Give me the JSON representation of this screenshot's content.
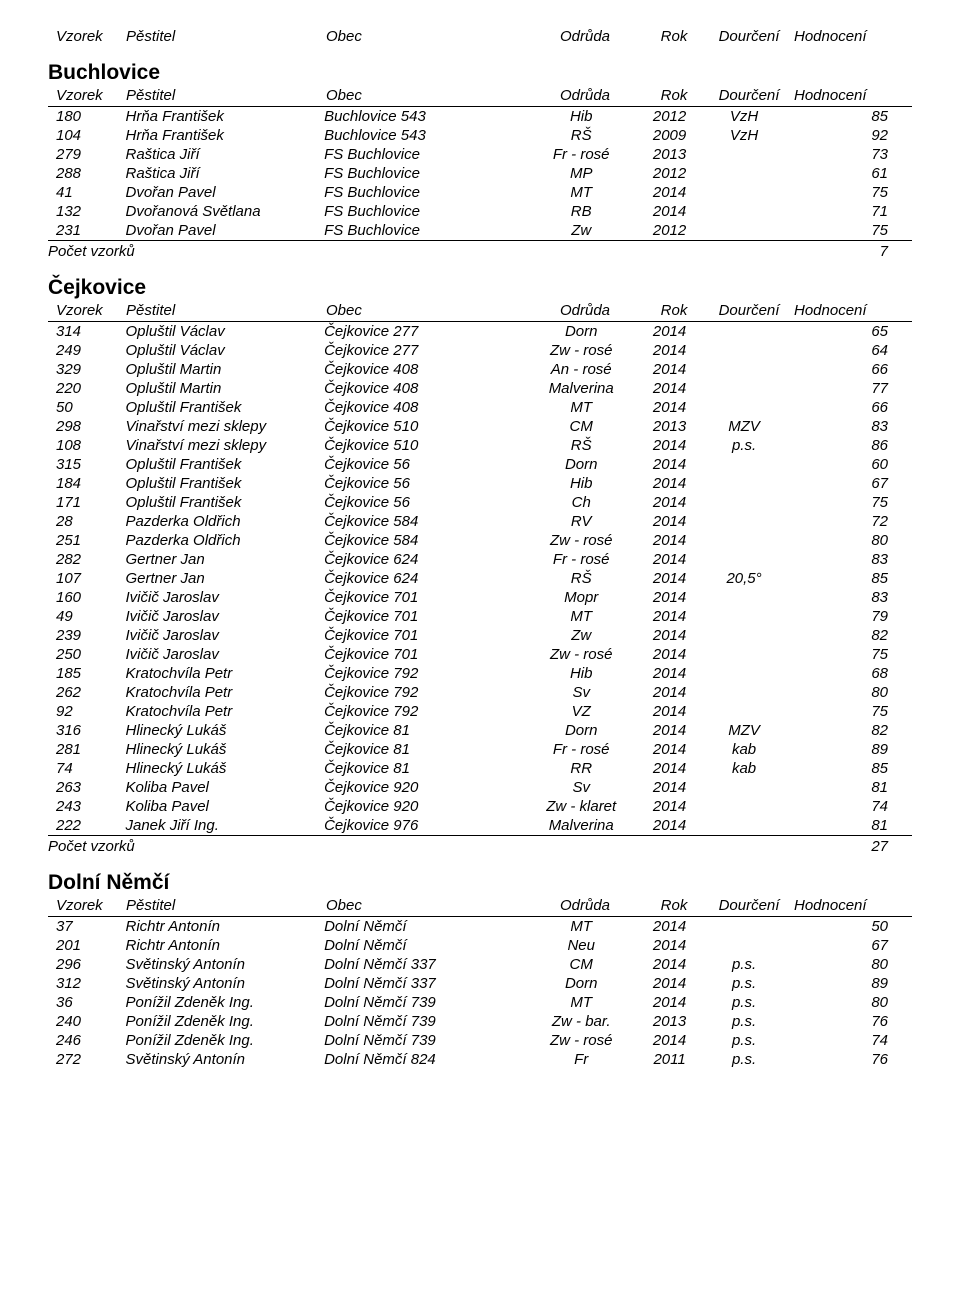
{
  "columns": {
    "vzorek": "Vzorek",
    "pestitel": "Pěstitel",
    "obec": "Obec",
    "odruda": "Odrůda",
    "rok": "Rok",
    "dour": "Dourčení",
    "hodn": "Hodnocení"
  },
  "pocet_label": "Počet vzorků",
  "sections": [
    {
      "title": "Buchlovice",
      "rows": [
        {
          "v": "180",
          "p": "Hrňa František",
          "o": "Buchlovice 543",
          "od": "Hib",
          "r": "2012",
          "d": "VzH",
          "h": "85"
        },
        {
          "v": "104",
          "p": "Hrňa František",
          "o": "Buchlovice 543",
          "od": "RŠ",
          "r": "2009",
          "d": "VzH",
          "h": "92"
        },
        {
          "v": "279",
          "p": "Raštica Jiří",
          "o": "FS Buchlovice",
          "od": "Fr - rosé",
          "r": "2013",
          "d": "",
          "h": "73"
        },
        {
          "v": "288",
          "p": "Raštica Jiří",
          "o": "FS Buchlovice",
          "od": "MP",
          "r": "2012",
          "d": "",
          "h": "61"
        },
        {
          "v": "41",
          "p": "Dvořan Pavel",
          "o": "FS Buchlovice",
          "od": "MT",
          "r": "2014",
          "d": "",
          "h": "75"
        },
        {
          "v": "132",
          "p": "Dvořanová Světlana",
          "o": "FS Buchlovice",
          "od": "RB",
          "r": "2014",
          "d": "",
          "h": "71"
        },
        {
          "v": "231",
          "p": "Dvořan Pavel",
          "o": "FS Buchlovice",
          "od": "Zw",
          "r": "2012",
          "d": "",
          "h": "75"
        }
      ],
      "count": "7"
    },
    {
      "title": "Čejkovice",
      "rows": [
        {
          "v": "314",
          "p": "Opluštil Václav",
          "o": "Čejkovice 277",
          "od": "Dorn",
          "r": "2014",
          "d": "",
          "h": "65"
        },
        {
          "v": "249",
          "p": "Opluštil Václav",
          "o": "Čejkovice 277",
          "od": "Zw - rosé",
          "r": "2014",
          "d": "",
          "h": "64"
        },
        {
          "v": "329",
          "p": "Opluštil Martin",
          "o": "Čejkovice 408",
          "od": "An - rosé",
          "r": "2014",
          "d": "",
          "h": "66"
        },
        {
          "v": "220",
          "p": "Opluštil Martin",
          "o": "Čejkovice 408",
          "od": "Malverina",
          "r": "2014",
          "d": "",
          "h": "77"
        },
        {
          "v": "50",
          "p": "Opluštil František",
          "o": "Čejkovice 408",
          "od": "MT",
          "r": "2014",
          "d": "",
          "h": "66"
        },
        {
          "v": "298",
          "p": "Vinařství mezi sklepy",
          "o": "Čejkovice 510",
          "od": "CM",
          "r": "2013",
          "d": "MZV",
          "h": "83"
        },
        {
          "v": "108",
          "p": "Vinařství mezi sklepy",
          "o": "Čejkovice 510",
          "od": "RŠ",
          "r": "2014",
          "d": "p.s.",
          "h": "86"
        },
        {
          "v": "315",
          "p": "Opluštil František",
          "o": "Čejkovice 56",
          "od": "Dorn",
          "r": "2014",
          "d": "",
          "h": "60"
        },
        {
          "v": "184",
          "p": "Opluštil František",
          "o": "Čejkovice 56",
          "od": "Hib",
          "r": "2014",
          "d": "",
          "h": "67"
        },
        {
          "v": "171",
          "p": "Opluštil František",
          "o": "Čejkovice 56",
          "od": "Ch",
          "r": "2014",
          "d": "",
          "h": "75"
        },
        {
          "v": "28",
          "p": "Pazderka Oldřich",
          "o": "Čejkovice 584",
          "od": "RV",
          "r": "2014",
          "d": "",
          "h": "72"
        },
        {
          "v": "251",
          "p": "Pazderka Oldřich",
          "o": "Čejkovice 584",
          "od": "Zw - rosé",
          "r": "2014",
          "d": "",
          "h": "80"
        },
        {
          "v": "282",
          "p": "Gertner Jan",
          "o": "Čejkovice 624",
          "od": "Fr - rosé",
          "r": "2014",
          "d": "",
          "h": "83"
        },
        {
          "v": "107",
          "p": "Gertner Jan",
          "o": "Čejkovice 624",
          "od": "RŠ",
          "r": "2014",
          "d": "20,5°",
          "h": "85"
        },
        {
          "v": "160",
          "p": "Ivičič Jaroslav",
          "o": "Čejkovice 701",
          "od": "Mopr",
          "r": "2014",
          "d": "",
          "h": "83"
        },
        {
          "v": "49",
          "p": "Ivičič Jaroslav",
          "o": "Čejkovice 701",
          "od": "MT",
          "r": "2014",
          "d": "",
          "h": "79"
        },
        {
          "v": "239",
          "p": "Ivičič Jaroslav",
          "o": "Čejkovice 701",
          "od": "Zw",
          "r": "2014",
          "d": "",
          "h": "82"
        },
        {
          "v": "250",
          "p": "Ivičič Jaroslav",
          "o": "Čejkovice 701",
          "od": "Zw - rosé",
          "r": "2014",
          "d": "",
          "h": "75"
        },
        {
          "v": "185",
          "p": "Kratochvíla Petr",
          "o": "Čejkovice 792",
          "od": "Hib",
          "r": "2014",
          "d": "",
          "h": "68"
        },
        {
          "v": "262",
          "p": "Kratochvíla Petr",
          "o": "Čejkovice 792",
          "od": "Sv",
          "r": "2014",
          "d": "",
          "h": "80"
        },
        {
          "v": "92",
          "p": "Kratochvíla Petr",
          "o": "Čejkovice 792",
          "od": "VZ",
          "r": "2014",
          "d": "",
          "h": "75"
        },
        {
          "v": "316",
          "p": "Hlinecký Lukáš",
          "o": "Čejkovice 81",
          "od": "Dorn",
          "r": "2014",
          "d": "MZV",
          "h": "82"
        },
        {
          "v": "281",
          "p": "Hlinecký Lukáš",
          "o": "Čejkovice 81",
          "od": "Fr - rosé",
          "r": "2014",
          "d": "kab",
          "h": "89"
        },
        {
          "v": "74",
          "p": "Hlinecký Lukáš",
          "o": "Čejkovice 81",
          "od": "RR",
          "r": "2014",
          "d": "kab",
          "h": "85"
        },
        {
          "v": "263",
          "p": "Koliba Pavel",
          "o": "Čejkovice 920",
          "od": "Sv",
          "r": "2014",
          "d": "",
          "h": "81"
        },
        {
          "v": "243",
          "p": "Koliba Pavel",
          "o": "Čejkovice 920",
          "od": "Zw - klaret",
          "r": "2014",
          "d": "",
          "h": "74"
        },
        {
          "v": "222",
          "p": "Janek Jiří Ing.",
          "o": "Čejkovice 976",
          "od": "Malverina",
          "r": "2014",
          "d": "",
          "h": "81"
        }
      ],
      "count": "27"
    },
    {
      "title": "Dolní Němčí",
      "rows": [
        {
          "v": "37",
          "p": "Richtr Antonín",
          "o": "Dolní Němčí",
          "od": "MT",
          "r": "2014",
          "d": "",
          "h": "50"
        },
        {
          "v": "201",
          "p": "Richtr Antonín",
          "o": "Dolní Němčí",
          "od": "Neu",
          "r": "2014",
          "d": "",
          "h": "67"
        },
        {
          "v": "296",
          "p": "Světinský Antonín",
          "o": "Dolní Němčí 337",
          "od": "CM",
          "r": "2014",
          "d": "p.s.",
          "h": "80"
        },
        {
          "v": "312",
          "p": "Světinský Antonín",
          "o": "Dolní Němčí 337",
          "od": "Dorn",
          "r": "2014",
          "d": "p.s.",
          "h": "89"
        },
        {
          "v": "36",
          "p": "Ponížil Zdeněk Ing.",
          "o": "Dolní Němčí 739",
          "od": "MT",
          "r": "2014",
          "d": "p.s.",
          "h": "80"
        },
        {
          "v": "240",
          "p": "Ponížil Zdeněk Ing.",
          "o": "Dolní Němčí 739",
          "od": "Zw - bar.",
          "r": "2013",
          "d": "p.s.",
          "h": "76"
        },
        {
          "v": "246",
          "p": "Ponížil Zdeněk Ing.",
          "o": "Dolní Němčí 739",
          "od": "Zw - rosé",
          "r": "2014",
          "d": "p.s.",
          "h": "74"
        },
        {
          "v": "272",
          "p": "Světinský Antonín",
          "o": "Dolní Němčí 824",
          "od": "Fr",
          "r": "2011",
          "d": "p.s.",
          "h": "76"
        }
      ],
      "count": null
    }
  ]
}
